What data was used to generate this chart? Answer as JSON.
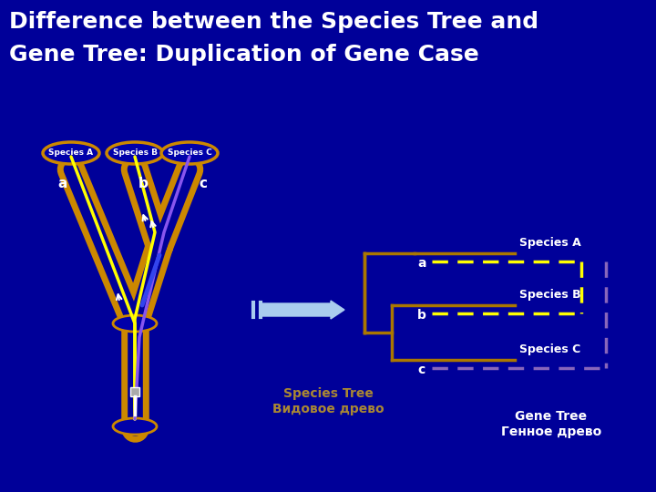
{
  "title_line1": "Difference between the Species Tree and",
  "title_line2": "Gene Tree: Duplication of Gene Case",
  "bg_color": "#000099",
  "title_color": "#FFFFFF",
  "tube_color": "#CC8800",
  "gene_yellow": "#FFFF00",
  "gene_purple": "#8855EE",
  "gene_blue": "#3344EE",
  "arrow_color": "#AACCEE",
  "clade_color": "#AA7700",
  "dashed_yellow": "#FFFF00",
  "dashed_purple": "#8866BB",
  "species_tree_label_line1": "Species Tree",
  "species_tree_label_line2": "Видовое древо",
  "gene_tree_label_line1": "Gene Tree",
  "gene_tree_label_line2": "Генное древо"
}
